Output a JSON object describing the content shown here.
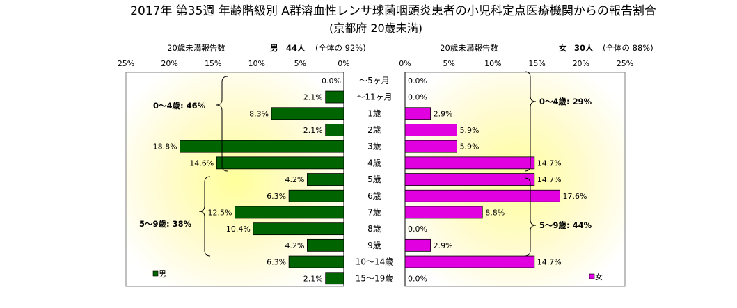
{
  "header": {
    "title": "2017年 第35週 年齢階級別 A群溶血性レンサ球菌咽頭炎患者の小児科定点医療機関からの報告割合",
    "subtitle": "(京都府 20歳未満)"
  },
  "left_panel": {
    "header_label": "20歳未満報告数",
    "header_gender": "男",
    "header_count": "44人",
    "header_share": "(全体の 92%)",
    "group_0_4": "0〜4歳: 46%",
    "group_5_9": "5〜9歳: 38%",
    "legend": "男"
  },
  "right_panel": {
    "header_label": "20歳未満報告数",
    "header_gender": "女",
    "header_count": "30人",
    "header_share": "(全体の 88%)",
    "group_0_4": "0〜4歳: 29%",
    "group_5_9": "5〜9歳: 44%",
    "legend": "女"
  },
  "chart_data": {
    "type": "bar",
    "orientation": "horizontal",
    "layout": "population-pyramid",
    "categories": [
      "〜5ヶ月",
      "〜11ヶ月",
      "1歳",
      "2歳",
      "3歳",
      "4歳",
      "5歳",
      "6歳",
      "7歳",
      "8歳",
      "9歳",
      "10〜14歳",
      "15〜19歳"
    ],
    "series": [
      {
        "name": "男",
        "color": "#006400",
        "values": [
          0.0,
          2.1,
          8.3,
          2.1,
          18.8,
          14.6,
          4.2,
          6.3,
          12.5,
          10.4,
          4.2,
          6.3,
          2.1
        ],
        "labels": [
          "0.0%",
          "2.1%",
          "8.3%",
          "2.1%",
          "18.8%",
          "14.6%",
          "4.2%",
          "6.3%",
          "12.5%",
          "10.4%",
          "4.2%",
          "6.3%",
          "2.1%"
        ]
      },
      {
        "name": "女",
        "color": "#e000e0",
        "values": [
          0.0,
          0.0,
          2.9,
          5.9,
          5.9,
          14.7,
          14.7,
          17.6,
          8.8,
          0.0,
          2.9,
          14.7,
          0.0
        ],
        "labels": [
          "0.0%",
          "0.0%",
          "2.9%",
          "5.9%",
          "5.9%",
          "14.7%",
          "14.7%",
          "17.6%",
          "8.8%",
          "0.0%",
          "2.9%",
          "14.7%",
          "0.0%"
        ]
      }
    ],
    "axis": {
      "xlim": [
        0,
        25
      ],
      "ticks": [
        25,
        20,
        15,
        10,
        5,
        0
      ],
      "tick_labels_left": [
        "25%",
        "20%",
        "15%",
        "10%",
        "5%",
        "0%"
      ],
      "tick_labels_right": [
        "0%",
        "5%",
        "10%",
        "15%",
        "20%",
        "25%"
      ],
      "unit": "%"
    },
    "plot_background": "yellow radial gradient",
    "grid": false
  }
}
